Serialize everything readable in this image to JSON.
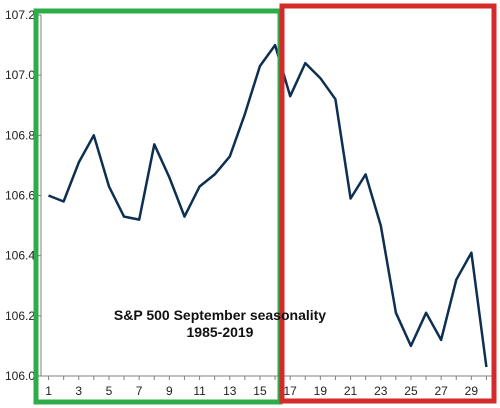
{
  "chart_data": {
    "type": "line",
    "title": "S&P 500 September seasonality",
    "subtitle": "1985-2019",
    "xlabel": "",
    "ylabel": "",
    "x": [
      1,
      2,
      3,
      4,
      5,
      6,
      7,
      8,
      9,
      10,
      11,
      12,
      13,
      14,
      15,
      16,
      17,
      18,
      19,
      20,
      21,
      22,
      23,
      24,
      25,
      26,
      27,
      28,
      29,
      30
    ],
    "series": [
      {
        "values": [
          106.6,
          106.58,
          106.71,
          106.8,
          106.63,
          106.53,
          106.52,
          106.77,
          106.66,
          106.53,
          106.63,
          106.67,
          106.73,
          106.87,
          107.03,
          107.1,
          106.93,
          107.04,
          106.99,
          106.92,
          106.59,
          106.67,
          106.5,
          106.21,
          106.1,
          106.21,
          106.12,
          106.32,
          106.41,
          106.03
        ],
        "color": "#0d2f52"
      }
    ],
    "ylim": [
      106.0,
      107.2
    ],
    "yticks": [
      "106.0",
      "106.2",
      "106.4",
      "106.6",
      "106.8",
      "107.0",
      "107.2"
    ],
    "xticks": [
      "1",
      "3",
      "5",
      "7",
      "9",
      "11",
      "13",
      "15",
      "17",
      "19",
      "21",
      "23",
      "25",
      "27",
      "29"
    ],
    "grid": false,
    "highlight_boxes": [
      {
        "from_day": 1,
        "to_day": 16,
        "color": "#2eac48"
      },
      {
        "from_day": 16,
        "to_day": 30,
        "color": "#d42a2a"
      }
    ]
  }
}
